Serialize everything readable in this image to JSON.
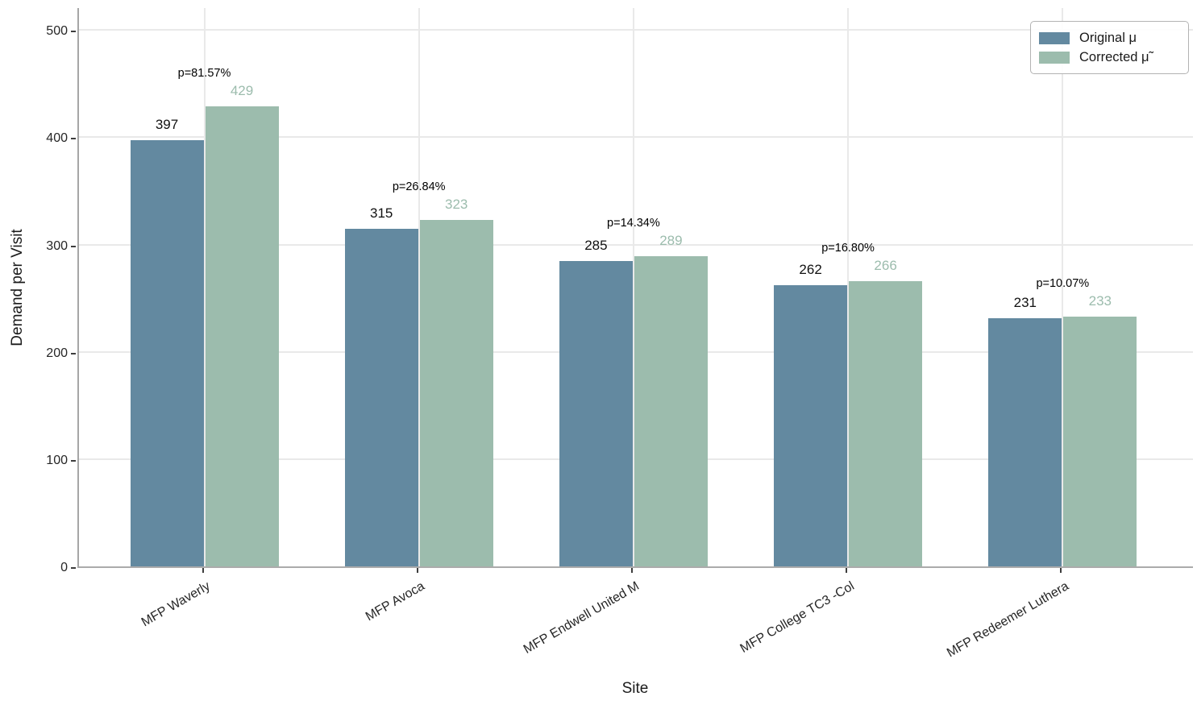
{
  "chart_data": {
    "type": "bar",
    "title": "",
    "xlabel": "Site",
    "ylabel": "Demand per Visit",
    "categories": [
      "MFP Waverly",
      "MFP Avoca",
      "MFP Endwell United M",
      "MFP College TC3 -Col",
      "MFP Redeemer Luthera"
    ],
    "series": [
      {
        "name": "Original μ",
        "color": "#6389a0",
        "values": [
          397,
          315,
          285,
          262,
          231
        ],
        "label_color": "#111111"
      },
      {
        "name": "Corrected μ̃",
        "color": "#9cbcad",
        "values": [
          429,
          323,
          289,
          266,
          233
        ],
        "label_color": "#9cbcad"
      }
    ],
    "annotations": [
      "p=81.57%",
      "p=26.84%",
      "p=14.34%",
      "p=16.80%",
      "p=10.07%"
    ],
    "yticks": [
      0,
      100,
      200,
      300,
      400,
      500
    ],
    "ylim": [
      0,
      522
    ],
    "grid": true,
    "legend_position": "upper right",
    "colors": {
      "grid": "#e9e9e9",
      "spine": "#a6a6a6",
      "tick": "#3d3d3d",
      "text": "#262626"
    }
  }
}
